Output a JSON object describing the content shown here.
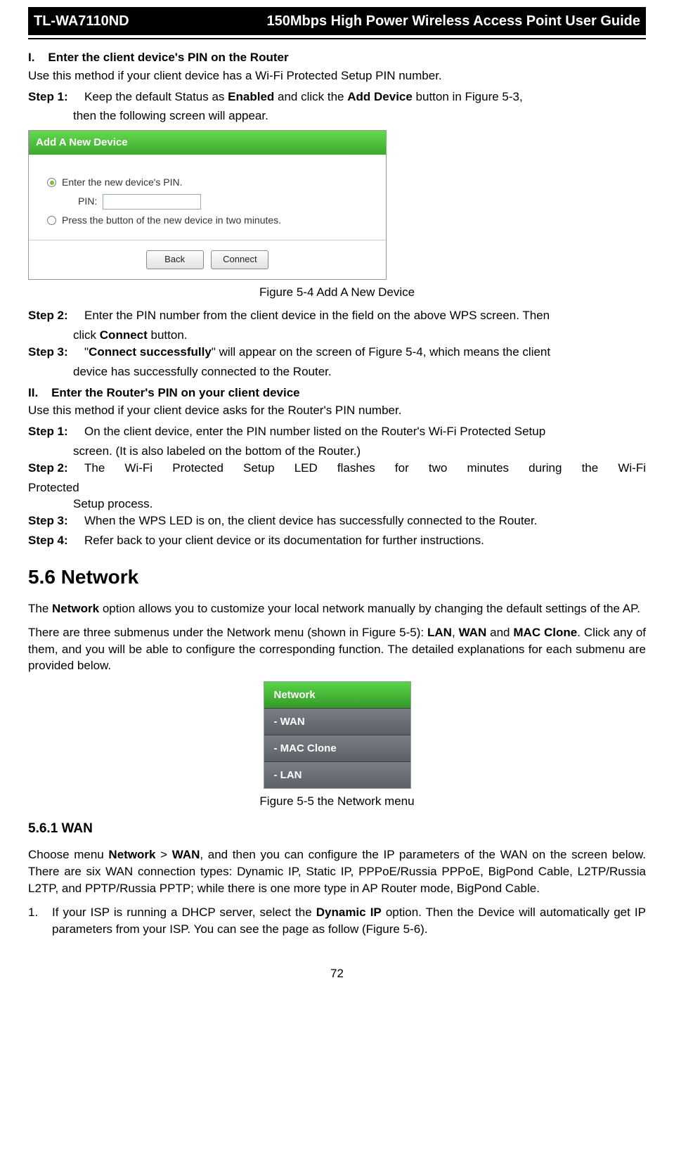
{
  "header": {
    "model": "TL-WA7110ND",
    "title": "150Mbps High Power Wireless Access Point User Guide"
  },
  "section1": {
    "heading_prefix": "I.",
    "heading_text": "Enter the client device's PIN on the Router",
    "intro": "Use this method if your client device has a Wi-Fi Protected Setup PIN number.",
    "step1_label": "Step 1:",
    "step1_a": "Keep the default Status as ",
    "step1_b1": "Enabled",
    "step1_c": " and click the ",
    "step1_b2": "Add Device",
    "step1_d": " button in Figure 5-3,",
    "step1_cont": "then the following screen will appear."
  },
  "device_panel": {
    "header": "Add A New Device",
    "radio1": "Enter the new device's PIN.",
    "pin_label": "PIN:",
    "pin_value": "",
    "radio2": "Press the button of the new device in two minutes.",
    "btn_back": "Back",
    "btn_connect": "Connect"
  },
  "fig54": "Figure 5-4    Add A New Device",
  "section1b": {
    "step2_label": "Step 2:",
    "step2_a": "Enter the PIN number from the client device in the field on the above WPS screen. Then",
    "step2_cont_a": "click ",
    "step2_cont_b": "Connect",
    "step2_cont_c": " button.",
    "step3_label": "Step 3:",
    "step3_a": "\"",
    "step3_b": "Connect successfully",
    "step3_c": "\" will appear on the screen of Figure 5-4, which means the client",
    "step3_cont": "device has successfully connected to the Router."
  },
  "section2": {
    "heading_prefix": "II.",
    "heading_text": "Enter the Router's PIN on your client device",
    "intro": "Use this method if your client device asks for the Router's PIN number.",
    "step1_label": "Step 1:",
    "step1_a": "On the client device, enter the PIN number listed on the Router's Wi-Fi Protected Setup",
    "step1_cont": "screen. (It is also labeled on the bottom of the Router.)",
    "step2_label": "Step 2:",
    "step2_a": "The Wi-Fi Protected Setup LED flashes for two minutes during the Wi-Fi",
    "step2_protected": "Protected",
    "step2_cont": "Setup process.",
    "step3_label": "Step 3:",
    "step3_a": "When the WPS LED is on, the client device has successfully connected to the Router.",
    "step4_label": "Step 4:",
    "step4_a": "Refer back to your client device or its documentation for further instructions."
  },
  "h56": "5.6    Network",
  "network_para1_a": "The ",
  "network_para1_b": "Network",
  "network_para1_c": " option allows you to customize your local network manually by changing the default settings of the AP.",
  "network_para2_a": "There are three submenus under the Network menu (shown in Figure 5-5): ",
  "network_para2_lan": "LAN",
  "network_para2_sep1": ", ",
  "network_para2_wan": "WAN",
  "network_para2_sep2": " and ",
  "network_para2_mac": "MAC Clone",
  "network_para2_d": ". Click any of them, and you will be able to configure the corresponding function.   The detailed explanations for each submenu are provided below.",
  "network_menu": {
    "header": "Network",
    "items": [
      "- WAN",
      "- MAC Clone",
      "- LAN"
    ],
    "colors": {
      "header_bg": "#3faa2f",
      "item_bg": "#5b6066",
      "text": "#ffffff"
    }
  },
  "fig55": "Figure 5-5 the Network menu",
  "h561": "5.6.1       WAN",
  "wan_para_a": "Choose menu ",
  "wan_para_b1": "Network",
  "wan_para_c": " > ",
  "wan_para_b2": "WAN",
  "wan_para_d": ", and then you can configure the IP parameters of the WAN on the screen below. There are six WAN connection types: Dynamic IP, Static IP, PPPoE/Russia PPPoE, BigPond Cable, L2TP/Russia L2TP, and PPTP/Russia PPTP; while there is one more type in AP Router mode, BigPond Cable.",
  "wan_num1_a": "If your ISP is running a DHCP server, select the ",
  "wan_num1_b": "Dynamic IP",
  "wan_num1_c": " option. Then the Device will automatically get IP parameters from your ISP. You can see the page as follow (Figure 5-6).",
  "page_number": "72"
}
